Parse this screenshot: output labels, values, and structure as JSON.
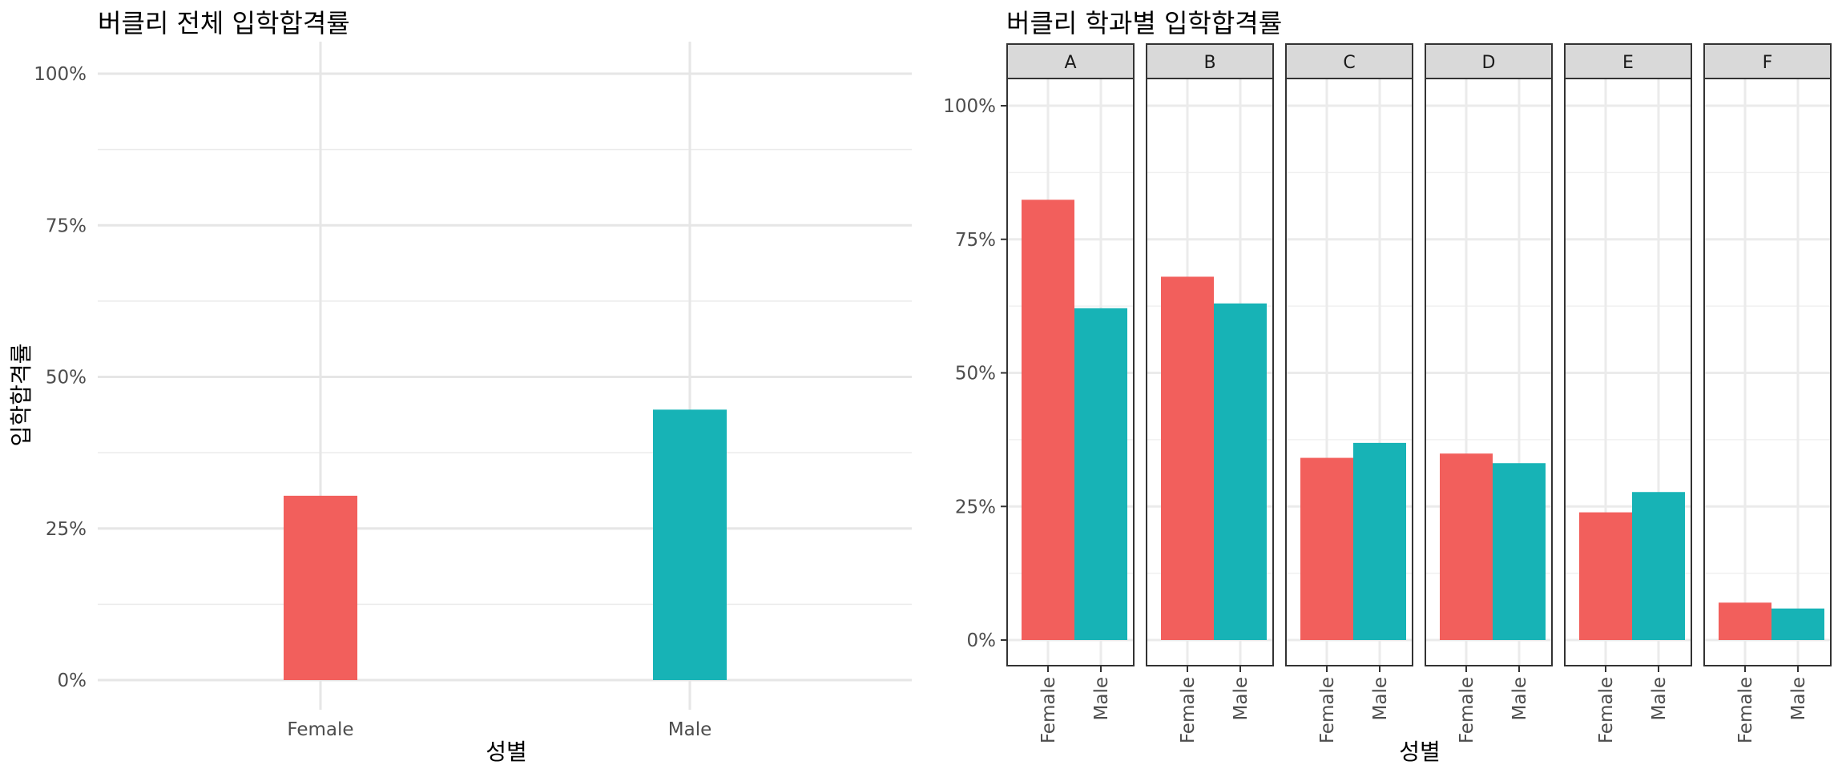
{
  "chart_data": [
    {
      "type": "bar",
      "title": "버클리 전체 입학합격률",
      "xlabel": "성별",
      "ylabel": "입학합격률",
      "categories": [
        "Female",
        "Male"
      ],
      "values": [
        0.304,
        0.446
      ],
      "ylim": [
        0,
        1
      ],
      "yticks": [
        0,
        0.25,
        0.5,
        0.75,
        1.0
      ],
      "ytick_labels": [
        "0%",
        "25%",
        "50%",
        "75%",
        "100%"
      ],
      "grid": true,
      "legend": "none",
      "colors": {
        "Female": "#F25F5C",
        "Male": "#17B3B6"
      }
    },
    {
      "type": "bar",
      "title": "버클리 학과별 입학합격률",
      "xlabel": "성별",
      "ylabel": "",
      "facets": [
        "A",
        "B",
        "C",
        "D",
        "E",
        "F"
      ],
      "categories": [
        "Female",
        "Male"
      ],
      "values": {
        "A": [
          0.824,
          0.621
        ],
        "B": [
          0.68,
          0.63
        ],
        "C": [
          0.341,
          0.369
        ],
        "D": [
          0.349,
          0.331
        ],
        "E": [
          0.239,
          0.277
        ],
        "F": [
          0.07,
          0.059
        ]
      },
      "ylim": [
        0,
        1
      ],
      "yticks": [
        0,
        0.25,
        0.5,
        0.75,
        1.0
      ],
      "ytick_labels": [
        "0%",
        "25%",
        "50%",
        "75%",
        "100%"
      ],
      "grid": true,
      "legend": "none",
      "colors": {
        "Female": "#F25F5C",
        "Male": "#17B3B6"
      }
    }
  ]
}
